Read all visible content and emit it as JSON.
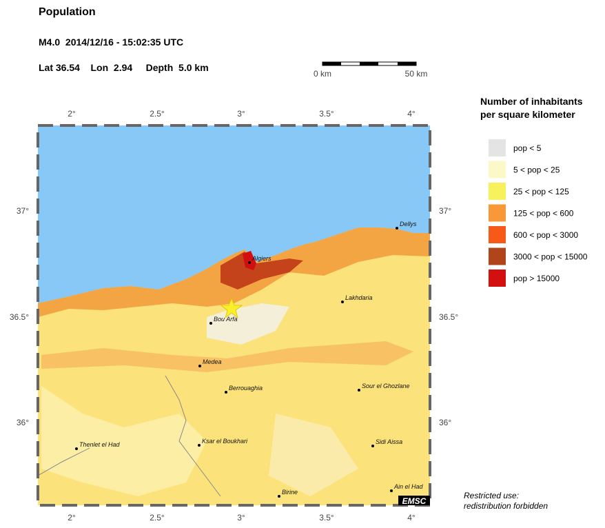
{
  "header": {
    "title": "Population",
    "event": "M4.0  2014/12/16 - 15:02:35 UTC",
    "location": "Lat 36.54    Lon  2.94     Depth  5.0 km"
  },
  "scale_bar": {
    "start": "0 km",
    "end": "50 km"
  },
  "map": {
    "lon_ticks": [
      "2°",
      "2.5°",
      "3°",
      "3.5°",
      "4°"
    ],
    "lat_ticks": [
      "37°",
      "36.5°",
      "36°"
    ],
    "cities": [
      "Algiers",
      "Dellys",
      "Lakhdaria",
      "Bou Arfa",
      "Medea",
      "Berrouaghia",
      "Sour el Ghozlane",
      "Thenlet el Had",
      "Ksar el Boukhari",
      "Sidi Aissa",
      "Birine",
      "Ain el Had"
    ],
    "logo": "EMSC"
  },
  "legend": {
    "title": [
      "Number of inhabitants",
      "per square kilometer"
    ],
    "items": [
      {
        "label": "pop < 5",
        "color": "#e4e4e4"
      },
      {
        "label": "5 < pop < 25",
        "color": "#fdf8c8"
      },
      {
        "label": "25 < pop < 125",
        "color": "#f8f15e"
      },
      {
        "label": "125 < pop < 600",
        "color": "#f89838"
      },
      {
        "label": "600 < pop < 3000",
        "color": "#f75a18"
      },
      {
        "label": "3000 < pop < 15000",
        "color": "#b0441a"
      },
      {
        "label": "pop > 15000",
        "color": "#d31010"
      }
    ]
  },
  "note": [
    "Restricted use:",
    "redistribution forbidden"
  ]
}
